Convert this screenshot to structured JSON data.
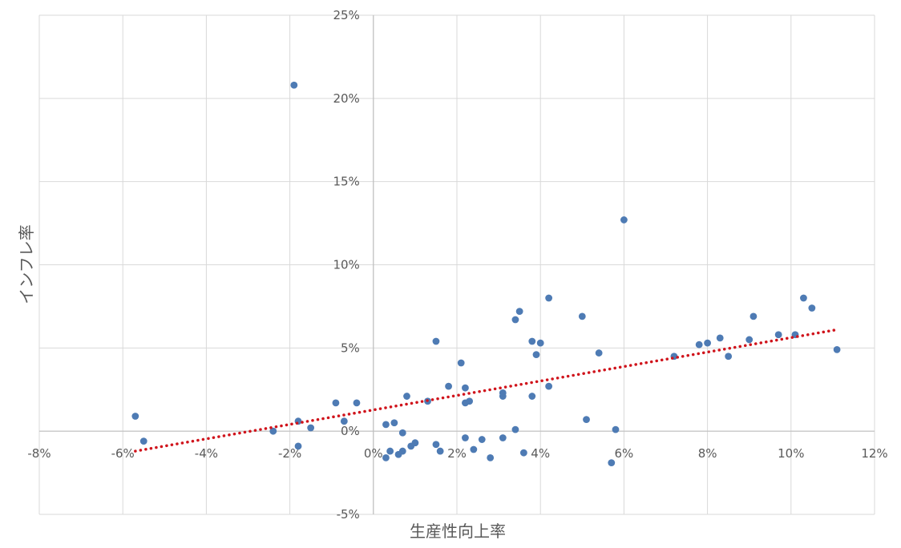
{
  "chart_data": {
    "type": "scatter",
    "title": "",
    "xlabel": "生産性向上率",
    "ylabel": "インフレ率",
    "xlim": [
      -8,
      12
    ],
    "ylim": [
      -5,
      25
    ],
    "grid": true,
    "legend": "none",
    "x_ticks": [
      "-8%",
      "-6%",
      "-4%",
      "-2%",
      "0%",
      "2%",
      "4%",
      "6%",
      "8%",
      "10%",
      "12%"
    ],
    "y_ticks": [
      "-5%",
      "0%",
      "5%",
      "10%",
      "15%",
      "20%",
      "25%"
    ],
    "colors": {
      "points": "#4e7bb4",
      "trendline": "#d0141c",
      "grid": "#d9d9d9",
      "axis": "#bfbfbf"
    },
    "trendline": {
      "type": "linear",
      "style": "dotted",
      "x": [
        -5.7,
        11.1
      ],
      "y": [
        -1.2,
        6.1
      ]
    },
    "series": [
      {
        "points": [
          {
            "x": -5.7,
            "y": 0.9
          },
          {
            "x": -5.5,
            "y": -0.6
          },
          {
            "x": -2.4,
            "y": 0.0
          },
          {
            "x": -1.9,
            "y": 20.8
          },
          {
            "x": -1.8,
            "y": 0.6
          },
          {
            "x": -1.8,
            "y": -0.9
          },
          {
            "x": -1.5,
            "y": 0.2
          },
          {
            "x": -0.9,
            "y": 1.7
          },
          {
            "x": -0.7,
            "y": 0.6
          },
          {
            "x": -0.4,
            "y": 1.7
          },
          {
            "x": 0.3,
            "y": 0.4
          },
          {
            "x": 0.3,
            "y": -1.6
          },
          {
            "x": 0.4,
            "y": -1.2
          },
          {
            "x": 0.5,
            "y": 0.5
          },
          {
            "x": 0.6,
            "y": -1.4
          },
          {
            "x": 0.7,
            "y": -1.2
          },
          {
            "x": 0.7,
            "y": -0.1
          },
          {
            "x": 0.8,
            "y": 2.1
          },
          {
            "x": 0.9,
            "y": -0.9
          },
          {
            "x": 1.0,
            "y": -0.7
          },
          {
            "x": 1.3,
            "y": 1.8
          },
          {
            "x": 1.5,
            "y": 5.4
          },
          {
            "x": 1.5,
            "y": -0.8
          },
          {
            "x": 1.6,
            "y": -1.2
          },
          {
            "x": 1.8,
            "y": 2.7
          },
          {
            "x": 2.1,
            "y": 4.1
          },
          {
            "x": 2.2,
            "y": 2.6
          },
          {
            "x": 2.2,
            "y": 1.7
          },
          {
            "x": 2.2,
            "y": -0.4
          },
          {
            "x": 2.3,
            "y": 1.8
          },
          {
            "x": 2.4,
            "y": -1.1
          },
          {
            "x": 2.6,
            "y": -0.5
          },
          {
            "x": 2.8,
            "y": -1.6
          },
          {
            "x": 3.1,
            "y": 2.3
          },
          {
            "x": 3.1,
            "y": 2.1
          },
          {
            "x": 3.1,
            "y": -0.4
          },
          {
            "x": 3.4,
            "y": 0.1
          },
          {
            "x": 3.4,
            "y": 6.7
          },
          {
            "x": 3.5,
            "y": 7.2
          },
          {
            "x": 3.6,
            "y": -1.3
          },
          {
            "x": 3.8,
            "y": 2.1
          },
          {
            "x": 3.8,
            "y": 5.4
          },
          {
            "x": 3.9,
            "y": 4.6
          },
          {
            "x": 4.0,
            "y": 5.3
          },
          {
            "x": 4.2,
            "y": 2.7
          },
          {
            "x": 4.2,
            "y": 8.0
          },
          {
            "x": 5.0,
            "y": 6.9
          },
          {
            "x": 5.1,
            "y": 0.7
          },
          {
            "x": 5.4,
            "y": 4.7
          },
          {
            "x": 5.7,
            "y": -1.9
          },
          {
            "x": 5.8,
            "y": 0.1
          },
          {
            "x": 6.0,
            "y": 12.7
          },
          {
            "x": 7.2,
            "y": 4.5
          },
          {
            "x": 7.8,
            "y": 5.2
          },
          {
            "x": 8.0,
            "y": 5.3
          },
          {
            "x": 8.3,
            "y": 5.6
          },
          {
            "x": 8.5,
            "y": 4.5
          },
          {
            "x": 9.0,
            "y": 5.5
          },
          {
            "x": 9.1,
            "y": 6.9
          },
          {
            "x": 9.7,
            "y": 5.8
          },
          {
            "x": 10.1,
            "y": 5.8
          },
          {
            "x": 10.3,
            "y": 8.0
          },
          {
            "x": 10.5,
            "y": 7.4
          },
          {
            "x": 11.1,
            "y": 4.9
          }
        ]
      }
    ]
  }
}
